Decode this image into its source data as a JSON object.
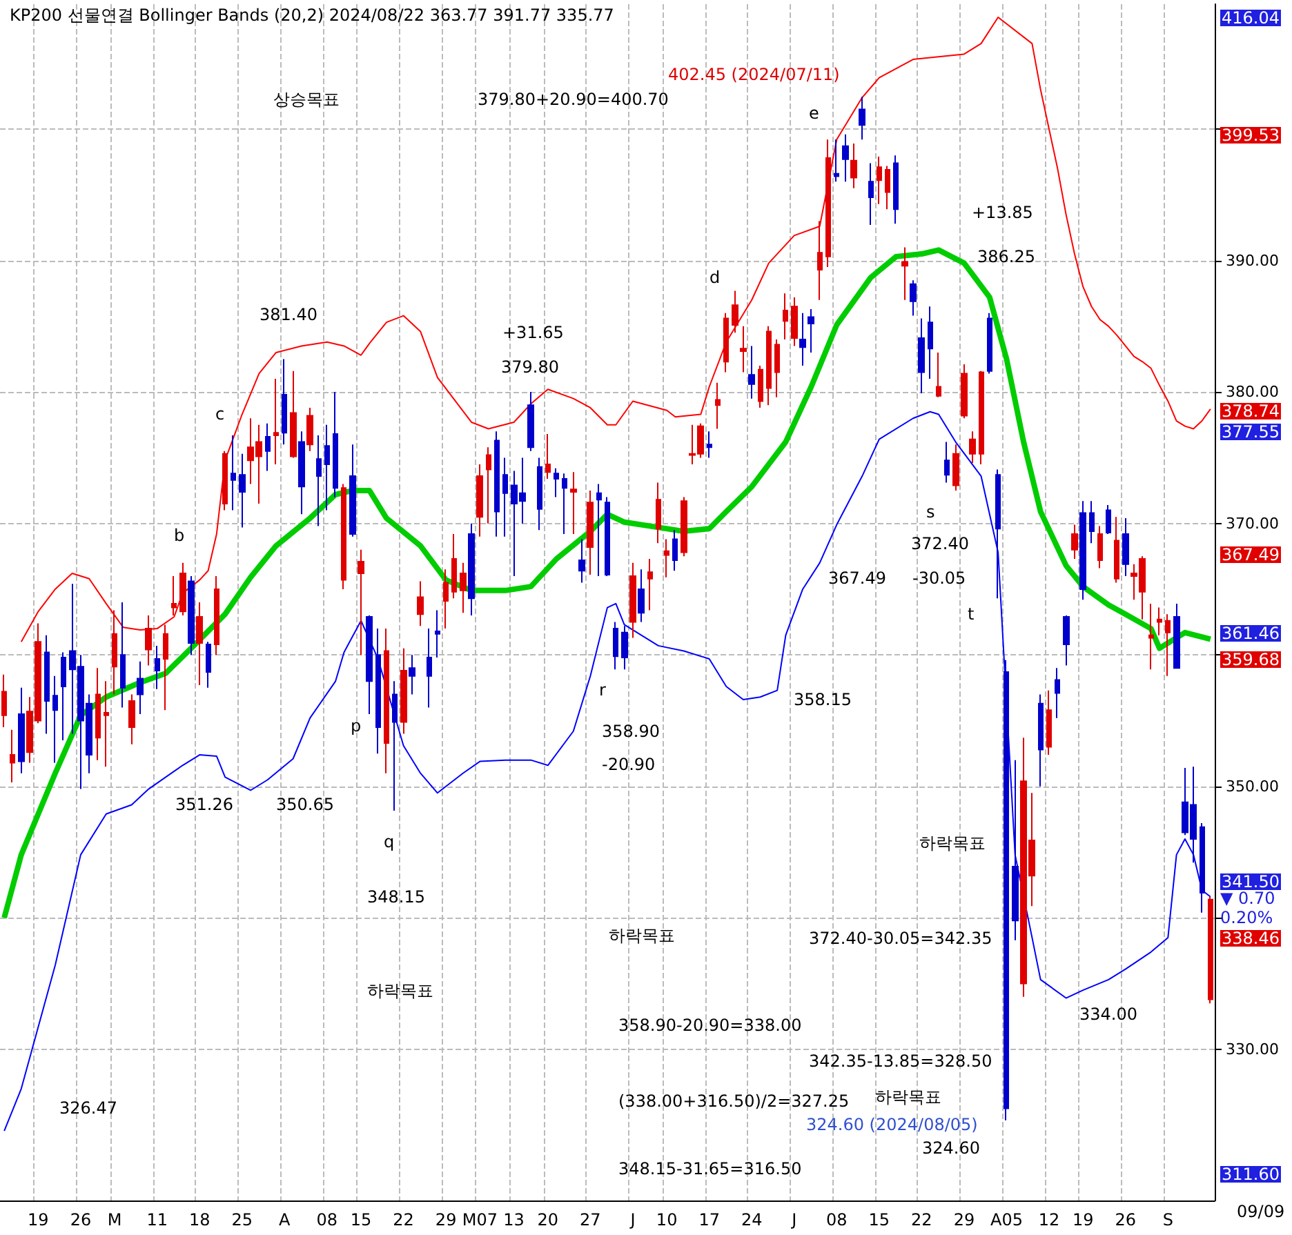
{
  "chart_data": {
    "type": "candlestick",
    "title": "KP200 선물연결 Bollinger Bands (20,2) 2024/08/22 363.77 391.77 335.77",
    "categories": [
      null,
      null,
      null,
      null,
      "19",
      null,
      null,
      null,
      null,
      "26",
      null,
      null,
      null,
      "M",
      null,
      null,
      null,
      null,
      "11",
      null,
      null,
      null,
      null,
      "18",
      null,
      null,
      null,
      null,
      "25",
      null,
      null,
      null,
      null,
      "A",
      null,
      null,
      null,
      null,
      "08",
      null,
      null,
      null,
      "15",
      null,
      null,
      null,
      null,
      "22",
      null,
      null,
      null,
      null,
      "29",
      null,
      null,
      null,
      "M07",
      null,
      null,
      null,
      "13",
      null,
      null,
      null,
      "20",
      null,
      null,
      null,
      null,
      "27",
      null,
      null,
      null,
      null,
      "J",
      null,
      null,
      null,
      "10",
      null,
      null,
      null,
      null,
      "17",
      null,
      null,
      null,
      null,
      "24",
      null,
      null,
      null,
      null,
      "J",
      null,
      null,
      null,
      null,
      "08",
      null,
      null,
      null,
      null,
      "15",
      null,
      null,
      null,
      null,
      "22",
      null,
      null,
      null,
      null,
      "29",
      null,
      null,
      null,
      null,
      "A05",
      null,
      null,
      null,
      null,
      "12",
      null,
      null,
      null,
      "19",
      null,
      null,
      null,
      null,
      "26",
      null,
      null,
      null,
      null,
      "S",
      null,
      null,
      null,
      null,
      null
    ],
    "ohlc": [
      [
        355.4,
        358.5,
        354.5,
        357.2
      ],
      [
        351.8,
        354.3,
        350.3,
        352.4
      ],
      [
        355.5,
        357.5,
        351.0,
        351.9
      ],
      [
        352.6,
        356.8,
        351.8,
        355.7
      ],
      [
        355.0,
        362.4,
        354.8,
        361.0
      ],
      [
        360.2,
        361.5,
        354.0,
        356.5
      ],
      [
        356.9,
        358.4,
        351.8,
        355.8
      ],
      [
        359.8,
        360.2,
        353.5,
        357.6
      ],
      [
        360.3,
        365.4,
        354.0,
        358.9
      ],
      [
        359.1,
        360.0,
        349.8,
        355.0
      ],
      [
        356.3,
        357.0,
        351.0,
        352.4
      ],
      [
        353.7,
        359.0,
        352.0,
        357.0
      ],
      [
        355.4,
        358.0,
        351.5,
        355.6
      ],
      [
        359.1,
        363.4,
        357.0,
        361.6
      ],
      [
        360.0,
        364.0,
        356.0,
        357.5
      ],
      [
        354.5,
        357.0,
        353.2,
        356.5
      ],
      [
        358.2,
        359.5,
        355.5,
        357.0
      ],
      [
        360.4,
        363.0,
        359.2,
        362.0
      ],
      [
        359.7,
        360.7,
        357.4,
        358.8
      ],
      [
        359.7,
        362.3,
        355.8,
        361.6
      ],
      [
        363.6,
        366.0,
        363.0,
        363.9
      ],
      [
        363.3,
        367.0,
        363.0,
        366.2
      ],
      [
        365.6,
        366.0,
        360.0,
        360.9
      ],
      [
        360.9,
        364.0,
        357.7,
        362.9
      ],
      [
        360.8,
        361.0,
        357.5,
        358.7
      ],
      [
        360.8,
        366.0,
        360.0,
        365.0
      ],
      [
        371.5,
        375.5,
        371.0,
        375.3
      ],
      [
        373.8,
        376.7,
        371.0,
        373.3
      ],
      [
        373.7,
        375.3,
        369.7,
        372.4
      ],
      [
        374.8,
        378.0,
        373.0,
        375.8
      ],
      [
        375.1,
        377.5,
        371.5,
        376.2
      ],
      [
        376.6,
        377.6,
        374.0,
        375.5
      ],
      [
        376.7,
        381.0,
        374.5,
        376.9
      ],
      [
        379.8,
        382.5,
        376.0,
        376.9
      ],
      [
        375.1,
        381.6,
        375.0,
        378.4
      ],
      [
        376.2,
        377.0,
        370.7,
        372.8
      ],
      [
        376.0,
        378.8,
        375.5,
        378.2
      ],
      [
        374.9,
        376.7,
        369.8,
        373.6
      ],
      [
        375.9,
        377.5,
        371.0,
        374.5
      ],
      [
        376.8,
        380.0,
        372.0,
        372.7
      ],
      [
        365.7,
        373.0,
        365.0,
        372.7
      ],
      [
        373.6,
        376.0,
        369.0,
        369.2
      ],
      [
        366.2,
        368.0,
        360.0,
        367.1
      ],
      [
        362.9,
        363.0,
        355.5,
        358.0
      ],
      [
        360.0,
        362.0,
        352.5,
        354.5
      ],
      [
        353.3,
        362.0,
        351.0,
        360.3
      ],
      [
        357.0,
        358.0,
        348.15,
        354.9
      ],
      [
        354.9,
        360.5,
        354.0,
        358.8
      ],
      [
        359.0,
        360.0,
        357.0,
        358.4
      ],
      [
        363.1,
        365.6,
        362.2,
        364.4
      ],
      [
        359.8,
        362.0,
        356.0,
        358.4
      ],
      [
        361.8,
        363.4,
        359.8,
        361.6
      ],
      [
        364.1,
        366.5,
        362.0,
        365.5
      ],
      [
        364.8,
        369.2,
        364.3,
        367.3
      ],
      [
        364.9,
        367.0,
        363.2,
        366.2
      ],
      [
        369.2,
        370.0,
        363.0,
        364.3
      ],
      [
        370.5,
        374.5,
        369.0,
        373.6
      ],
      [
        374.1,
        375.8,
        370.0,
        375.2
      ],
      [
        376.3,
        377.0,
        369.0,
        370.9
      ],
      [
        373.7,
        375.0,
        369.0,
        372.3
      ],
      [
        372.9,
        374.0,
        366.0,
        371.5
      ],
      [
        372.3,
        375.0,
        370.0,
        371.7
      ],
      [
        379.0,
        380.0,
        375.5,
        375.8
      ],
      [
        374.3,
        375.0,
        369.5,
        371.1
      ],
      [
        373.9,
        376.8,
        373.4,
        374.5
      ],
      [
        373.8,
        374.2,
        372.0,
        373.4
      ],
      [
        373.4,
        373.8,
        369.2,
        372.7
      ],
      [
        372.4,
        373.9,
        369.2,
        372.6
      ],
      [
        367.2,
        368.8,
        365.5,
        366.4
      ],
      [
        368.2,
        372.5,
        366.1,
        371.6
      ],
      [
        372.3,
        373.0,
        366.0,
        371.8
      ],
      [
        371.6,
        372.0,
        366.0,
        366.1
      ],
      [
        362.0,
        362.5,
        358.9,
        359.9
      ],
      [
        361.7,
        362.2,
        358.9,
        359.8
      ],
      [
        362.5,
        367.0,
        361.3,
        366.0
      ],
      [
        365.0,
        366.5,
        362.5,
        363.2
      ],
      [
        365.8,
        367.3,
        363.4,
        366.3
      ],
      [
        369.6,
        373.1,
        368.5,
        371.8
      ],
      [
        367.6,
        368.8,
        365.9,
        367.9
      ],
      [
        368.8,
        369.5,
        366.4,
        367.2
      ],
      [
        367.8,
        372.0,
        367.5,
        371.7
      ],
      [
        375.2,
        377.5,
        374.5,
        375.3
      ],
      [
        375.3,
        377.6,
        375.0,
        377.4
      ],
      [
        376.0,
        377.0,
        375.0,
        375.8
      ],
      [
        379.0,
        380.7,
        377.2,
        379.4
      ],
      [
        382.3,
        386.0,
        381.5,
        385.6
      ],
      [
        385.1,
        387.7,
        384.5,
        386.6
      ],
      [
        383.1,
        385.0,
        381.5,
        383.3
      ],
      [
        381.3,
        383.5,
        379.5,
        380.6
      ],
      [
        379.3,
        382.0,
        378.8,
        381.7
      ],
      [
        380.3,
        385.0,
        379.0,
        384.6
      ],
      [
        381.5,
        384.0,
        379.6,
        383.6
      ],
      [
        385.4,
        387.5,
        384.0,
        386.2
      ],
      [
        384.1,
        387.2,
        383.5,
        386.5
      ],
      [
        384.0,
        386.0,
        382.0,
        383.4
      ],
      [
        385.7,
        386.3,
        383.0,
        385.2
      ],
      [
        389.3,
        393.0,
        387.0,
        390.6
      ],
      [
        390.3,
        399.2,
        389.5,
        397.8
      ],
      [
        396.6,
        399.2,
        396.0,
        396.4
      ],
      [
        398.7,
        399.6,
        396.0,
        397.7
      ],
      [
        396.3,
        398.9,
        395.5,
        397.6
      ],
      [
        401.5,
        402.45,
        399.2,
        400.3
      ],
      [
        396.0,
        397.4,
        392.7,
        394.8
      ],
      [
        396.1,
        397.9,
        394.3,
        397.1
      ],
      [
        395.2,
        397.2,
        393.9,
        396.9
      ],
      [
        397.4,
        398.0,
        392.8,
        393.9
      ],
      [
        389.6,
        391.0,
        387.0,
        389.9
      ],
      [
        388.2,
        388.5,
        385.8,
        386.9
      ],
      [
        384.1,
        385.6,
        379.9,
        381.5
      ],
      [
        385.3,
        386.5,
        381.0,
        383.3
      ],
      [
        379.7,
        383.0,
        379.6,
        380.4
      ],
      [
        374.8,
        376.2,
        373.1,
        373.7
      ],
      [
        372.9,
        376.0,
        372.5,
        375.3
      ],
      [
        378.2,
        382.1,
        378.0,
        381.4
      ],
      [
        375.3,
        377.0,
        374.6,
        376.4
      ],
      [
        375.3,
        381.6,
        374.5,
        381.5
      ],
      [
        385.6,
        386.0,
        381.4,
        381.6
      ],
      [
        373.7,
        374.1,
        364.3,
        369.6
      ],
      [
        358.7,
        359.6,
        324.6,
        325.5
      ],
      [
        343.9,
        352.0,
        338.3,
        339.8
      ],
      [
        335.0,
        353.7,
        334.0,
        350.4
      ],
      [
        343.2,
        349.5,
        340.9,
        345.9
      ],
      [
        356.3,
        357.0,
        350.0,
        352.8
      ],
      [
        353.0,
        357.3,
        352.4,
        355.8
      ],
      [
        358.1,
        359.0,
        355.2,
        357.1
      ],
      [
        362.9,
        363.0,
        359.2,
        360.8
      ],
      [
        368.0,
        369.9,
        367.3,
        369.2
      ],
      [
        370.8,
        371.7,
        364.2,
        365.0
      ],
      [
        370.8,
        371.7,
        368.5,
        369.4
      ],
      [
        367.2,
        369.8,
        366.6,
        369.2
      ],
      [
        371.0,
        371.4,
        369.2,
        369.3
      ],
      [
        365.8,
        370.5,
        365.5,
        368.7
      ],
      [
        369.2,
        370.4,
        366.0,
        366.9
      ],
      [
        366.0,
        366.9,
        364.2,
        366.2
      ],
      [
        364.8,
        367.5,
        362.7,
        367.3
      ],
      [
        361.3,
        363.9,
        358.9,
        361.5
      ],
      [
        362.5,
        363.6,
        361.5,
        362.7
      ],
      [
        361.7,
        363.1,
        358.4,
        362.6
      ],
      [
        362.9,
        363.9,
        359.0,
        359.0
      ],
      [
        348.8,
        351.4,
        346.3,
        346.5
      ],
      [
        348.6,
        351.5,
        344.2,
        346.0
      ],
      [
        346.9,
        347.2,
        340.4,
        341.9
      ],
      [
        333.8,
        341.6,
        333.5,
        341.4
      ]
    ],
    "colors": [
      "#e00000",
      "#e00000",
      "#0000cc",
      "#e00000",
      "#e00000",
      "#0000cc",
      "#0000cc",
      "#0000cc",
      "#0000cc",
      "#0000cc",
      "#0000cc",
      "#e00000",
      "#e00000",
      "#e00000",
      "#0000cc",
      "#e00000",
      "#0000cc",
      "#e00000",
      "#0000cc",
      "#e00000",
      "#e00000",
      "#e00000",
      "#0000cc",
      "#e00000",
      "#0000cc",
      "#e00000",
      "#e00000",
      "#0000cc",
      "#0000cc",
      "#e00000",
      "#e00000",
      "#0000cc",
      "#e00000",
      "#0000cc",
      "#e00000",
      "#0000cc",
      "#e00000",
      "#0000cc",
      "#0000cc",
      "#0000cc",
      "#e00000",
      "#0000cc",
      "#e00000",
      "#0000cc",
      "#0000cc",
      "#e00000",
      "#0000cc",
      "#e00000",
      "#0000cc",
      "#e00000",
      "#0000cc",
      "#0000cc",
      "#e00000",
      "#e00000",
      "#e00000",
      "#0000cc",
      "#e00000",
      "#e00000",
      "#0000cc",
      "#0000cc",
      "#0000cc",
      "#0000cc",
      "#0000cc",
      "#0000cc",
      "#e00000",
      "#0000cc",
      "#0000cc",
      "#e00000",
      "#0000cc",
      "#e00000",
      "#0000cc",
      "#0000cc",
      "#0000cc",
      "#0000cc",
      "#e00000",
      "#0000cc",
      "#e00000",
      "#e00000",
      "#e00000",
      "#0000cc",
      "#e00000",
      "#e00000",
      "#e00000",
      "#0000cc",
      "#e00000",
      "#e00000",
      "#e00000",
      "#e00000",
      "#0000cc",
      "#e00000",
      "#e00000",
      "#e00000",
      "#e00000",
      "#e00000",
      "#0000cc",
      "#0000cc",
      "#e00000",
      "#e00000",
      "#0000cc",
      "#0000cc",
      "#e00000",
      "#0000cc",
      "#0000cc",
      "#e00000",
      "#e00000",
      "#0000cc",
      "#e00000",
      "#0000cc",
      "#0000cc",
      "#0000cc",
      "#e00000",
      "#0000cc",
      "#e00000",
      "#e00000",
      "#e00000",
      "#e00000",
      "#0000cc",
      "#0000cc",
      "#0000cc",
      "#0000cc",
      "#e00000",
      "#e00000",
      "#0000cc",
      "#e00000",
      "#0000cc",
      "#0000cc",
      "#e00000",
      "#0000cc",
      "#0000cc",
      "#e00000",
      "#0000cc",
      "#e00000",
      "#0000cc",
      "#e00000",
      "#e00000",
      "#e00000",
      "#e00000",
      "#e00000",
      "#0000cc",
      "#0000cc",
      "#0000cc",
      "#0000cc",
      "#e00000"
    ],
    "series": [
      {
        "type": "line",
        "color": "#ff0000",
        "values": [
          null,
          null,
          361,
          null,
          363.3,
          null,
          365,
          null,
          366.2,
          null,
          365.8,
          null,
          363.9,
          null,
          362.1,
          null,
          361.9,
          null,
          362,
          null,
          362.9,
          364.7,
          null,
          365.7,
          366.4,
          369.2,
          374.8,
          null,
          378.3,
          null,
          381.4,
          null,
          383.0,
          null,
          null,
          383.5,
          null,
          null,
          383.8,
          null,
          383.5,
          null,
          382.8,
          383.7,
          null,
          385.3,
          null,
          385.8,
          null,
          384.6,
          null,
          381.1,
          null,
          null,
          null,
          377.7,
          null,
          377.2,
          null,
          null,
          377.7,
          null,
          379.1,
          null,
          380.2,
          null,
          null,
          379.5,
          null,
          378.8,
          null,
          377.5,
          377.5,
          null,
          379.3,
          null,
          null,
          null,
          378.6,
          378.1,
          null,
          null,
          378.3,
          380.4,
          null,
          383.8,
          null,
          null,
          387,
          null,
          389.8,
          null,
          null,
          391.9,
          null,
          null,
          392.6,
          null,
          399.2,
          null,
          null,
          402.4,
          null,
          403.9,
          null,
          null,
          null,
          405.3,
          null,
          null,
          405.5,
          null,
          null,
          405.7,
          null,
          406.5,
          null,
          408.5,
          null,
          null,
          null,
          406.5,
          403,
          400,
          397,
          393.5,
          390.5,
          388,
          386.5,
          385.5,
          385,
          384.3,
          383.5,
          382.7,
          382.3,
          381.8,
          380.5,
          379.3,
          377.8,
          377.4,
          377.2,
          377.8,
          378.7
        ]
      },
      {
        "type": "line",
        "color": "#00cc00",
        "values": [
          340,
          null,
          344.8,
          null,
          null,
          null,
          351,
          null,
          null,
          355.4,
          null,
          null,
          356.8,
          null,
          null,
          null,
          357.9,
          null,
          null,
          358.6,
          null,
          null,
          360.5,
          null,
          null,
          null,
          363.1,
          null,
          null,
          365.9,
          null,
          null,
          368.3,
          null,
          null,
          null,
          370.4,
          null,
          null,
          372.2,
          null,
          372.5,
          null,
          372.5,
          null,
          370.4,
          null,
          null,
          null,
          368.3,
          null,
          null,
          365.7,
          null,
          null,
          364.9,
          null,
          null,
          null,
          364.9,
          null,
          null,
          365.2,
          null,
          null,
          367.3,
          null,
          null,
          null,
          369.4,
          null,
          370.7,
          null,
          370.1,
          null,
          null,
          null,
          369.7,
          null,
          null,
          369.4,
          null,
          null,
          369.6,
          null,
          370.9,
          null,
          null,
          372.8,
          null,
          null,
          null,
          376.2,
          null,
          null,
          380.4,
          null,
          null,
          385.1,
          null,
          null,
          null,
          388.7,
          null,
          null,
          390.3,
          null,
          null,
          390.5,
          null,
          390.8,
          null,
          null,
          389.8,
          null,
          null,
          387.2,
          null,
          382.5,
          null,
          376.2,
          null,
          370.9,
          null,
          null,
          366.8,
          null,
          365.2,
          null,
          null,
          363.8,
          null,
          363.1,
          null,
          null,
          362.0,
          360.5,
          null,
          361.3,
          361.7,
          null,
          null,
          361.2
        ]
      },
      {
        "type": "line",
        "color": "#0000ff",
        "values": [
          323.8,
          null,
          327,
          null,
          null,
          null,
          336.4,
          null,
          null,
          344.8,
          null,
          null,
          347.9,
          null,
          null,
          348.6,
          null,
          349.8,
          null,
          null,
          null,
          351.6,
          null,
          352.4,
          null,
          352.3,
          350.7,
          null,
          null,
          349.7,
          null,
          350.5,
          null,
          null,
          352.1,
          null,
          355.2,
          null,
          null,
          358.0,
          360.2,
          null,
          362.6,
          null,
          359.7,
          null,
          null,
          353.1,
          null,
          351,
          null,
          349.5,
          null,
          null,
          351.0,
          null,
          351.9,
          null,
          null,
          352,
          null,
          null,
          352,
          null,
          351.6,
          null,
          null,
          354.2,
          null,
          358.4,
          null,
          363.6,
          363.9,
          362.3,
          null,
          null,
          null,
          360.7,
          null,
          null,
          360.3,
          null,
          null,
          359.7,
          null,
          357.6,
          null,
          356.6,
          null,
          356.8,
          null,
          357.3,
          361.5,
          null,
          365.0,
          null,
          367,
          null,
          369.9,
          null,
          null,
          373.6,
          null,
          376.4,
          null,
          null,
          null,
          378.0,
          null,
          378.5,
          378.3,
          null,
          376.2,
          null,
          null,
          373.6,
          null,
          367.8,
          null,
          344.8,
          null,
          338.5,
          335.3,
          null,
          null,
          333.9,
          null,
          334.5,
          null,
          null,
          335.3,
          null,
          336.1,
          null,
          null,
          337.4,
          null,
          338.5,
          344.8,
          346.0,
          344.8,
          342.1,
          341.6
        ]
      }
    ],
    "ylim": [
      318.5,
      409.5
    ],
    "yticks": [
      {
        "value": 330,
        "label": "330.00"
      },
      {
        "value": 340,
        "label": null
      },
      {
        "value": 350,
        "label": "350.00"
      },
      {
        "value": 360,
        "label": null
      },
      {
        "value": 370,
        "label": "370.00"
      },
      {
        "value": 380,
        "label": "380.00"
      },
      {
        "value": 390,
        "label": "390.00"
      },
      {
        "value": 400,
        "label": null
      }
    ],
    "grid": true,
    "annotations": [
      "상승목표",
      "379.80+20.90=400.70",
      "402.45 (2024/07/11)",
      "e",
      "+13.85",
      "386.25",
      "d",
      "381.40",
      "+31.65",
      "379.80",
      "c",
      "b",
      "s",
      "372.40",
      "367.49",
      "-30.05",
      "t",
      "r",
      "358.15",
      "p",
      "358.90",
      "-20.90",
      "351.26",
      "350.65",
      "q",
      "하락목표",
      "348.15",
      "하락목표",
      "372.40-30.05=342.35",
      "하락목표",
      "334.00",
      "358.90-20.90=338.00",
      "342.35-13.85=328.50",
      "(338.00+316.50)/2=327.25",
      "하락목표",
      "324.60 (2024/08/05)",
      "326.47",
      "324.60",
      "348.15-31.65=316.50",
      "416.04",
      "399.53",
      "378.74",
      "377.55",
      "367.49",
      "361.46",
      "359.68",
      "341.50",
      "▼ 0.70",
      "0.20%",
      "338.46",
      "311.60",
      "09/09"
    ]
  }
}
